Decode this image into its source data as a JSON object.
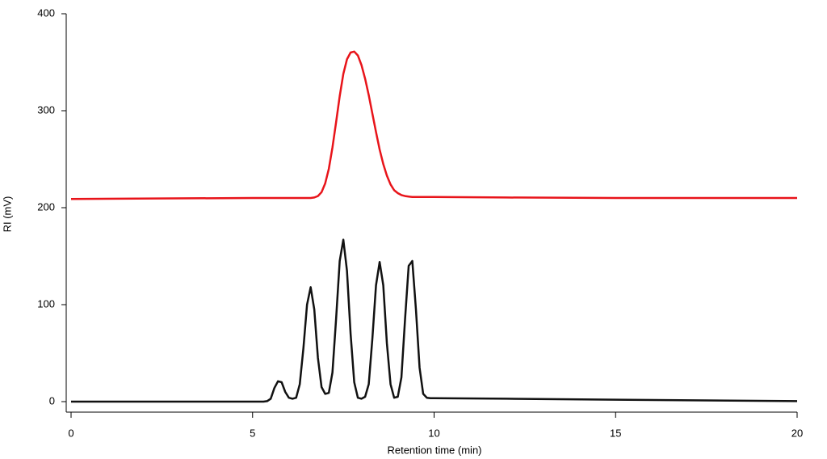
{
  "chart_data": {
    "type": "line",
    "x_label": "Retention time (min)",
    "y_label": "RI (mV)",
    "x": [
      0,
      5,
      5.3,
      5.4,
      5.5,
      5.6,
      5.7,
      5.8,
      5.9,
      6.0,
      6.1,
      6.2,
      6.3,
      6.4,
      6.5,
      6.6,
      6.7,
      6.8,
      6.9,
      7.0,
      7.1,
      7.2,
      7.3,
      7.4,
      7.5,
      7.6,
      7.7,
      7.8,
      7.9,
      8.0,
      8.1,
      8.2,
      8.3,
      8.4,
      8.5,
      8.6,
      8.7,
      8.8,
      8.9,
      9.0,
      9.1,
      9.2,
      9.3,
      9.4,
      9.5,
      9.6,
      9.7,
      9.8,
      9.9,
      10.0,
      12,
      15,
      20
    ],
    "series": [
      {
        "color": "#e8141a",
        "values": [
          209,
          210,
          210,
          210,
          210,
          210,
          210,
          210,
          210,
          210,
          210,
          210,
          210,
          210,
          210,
          210,
          210.5,
          212,
          216,
          225,
          240,
          262,
          288,
          315,
          338,
          353,
          360,
          361,
          357,
          347,
          333,
          316,
          297,
          278,
          260,
          245,
          233,
          224,
          218,
          215,
          213,
          212,
          211.5,
          211,
          211,
          211,
          211,
          211,
          211,
          211,
          210.5,
          210,
          210
        ]
      },
      {
        "color": "#111111",
        "values": [
          0,
          0,
          0,
          0.5,
          3,
          14,
          21,
          20,
          10,
          4,
          3,
          4,
          18,
          55,
          100,
          118,
          95,
          45,
          15,
          8,
          9,
          30,
          85,
          145,
          167,
          135,
          70,
          20,
          4,
          3,
          5,
          18,
          65,
          120,
          144,
          120,
          60,
          18,
          4,
          5,
          25,
          85,
          140,
          145,
          95,
          35,
          8,
          4,
          3.5,
          3.5,
          3,
          2,
          0.5
        ]
      }
    ],
    "xlim": [
      -0.1,
      20
    ],
    "ylim": [
      -10,
      400
    ],
    "xticks": [
      0,
      5,
      10,
      15,
      20
    ],
    "yticks": [
      0,
      100,
      200,
      300,
      400
    ],
    "grid": false
  }
}
